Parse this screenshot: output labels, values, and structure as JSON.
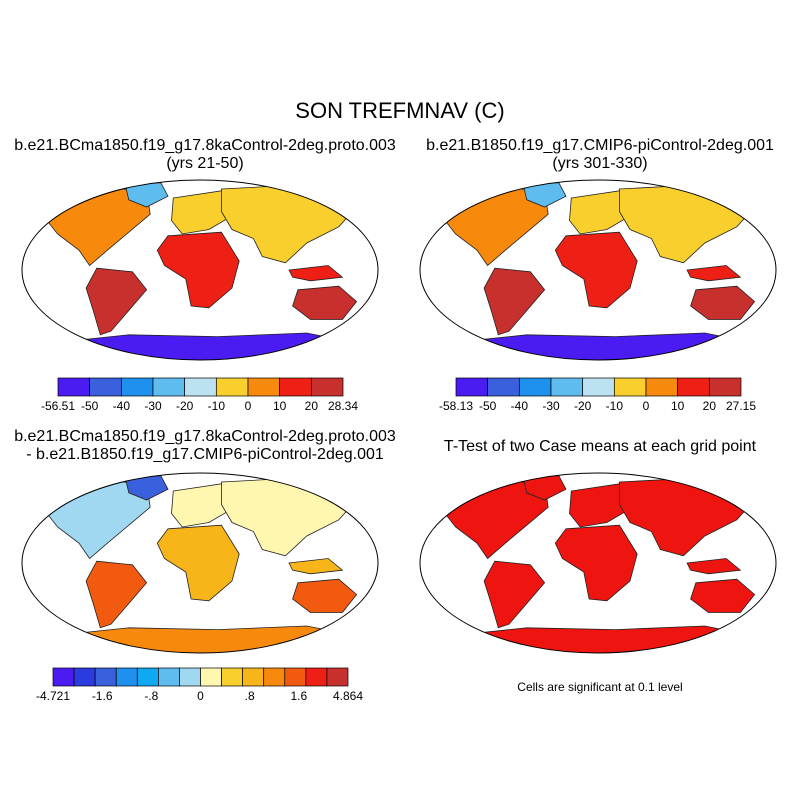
{
  "title": "SON TREFMNAV (C)",
  "chart_data": [
    {
      "type": "heatmap",
      "title_line1": "b.e21.BCma1850.f19_g17.8kaControl-2deg.proto.003",
      "title_line2": "(yrs 21-50)",
      "colorbar": {
        "colors": [
          "#4b1cf2",
          "#3b60dd",
          "#1e90ee",
          "#5ebcee",
          "#bce1f0",
          "#f8cf2d",
          "#f7890c",
          "#ee1f14",
          "#c8302d"
        ],
        "tick_labels": [
          "-56.51",
          "-50",
          "-40",
          "-30",
          "-20",
          "-10",
          "0",
          "10",
          "20",
          "28.34"
        ],
        "min": -56.51,
        "max": 28.34
      }
    },
    {
      "type": "heatmap",
      "title_line1": "b.e21.B1850.f19_g17.CMIP6-piControl-2deg.001",
      "title_line2": "(yrs 301-330)",
      "colorbar": {
        "colors": [
          "#4b1cf2",
          "#3b60dd",
          "#1e90ee",
          "#5ebcee",
          "#bce1f0",
          "#f8cf2d",
          "#f7890c",
          "#ee1f14",
          "#c8302d"
        ],
        "tick_labels": [
          "-58.13",
          "-50",
          "-40",
          "-30",
          "-20",
          "-10",
          "0",
          "10",
          "20",
          "27.15"
        ],
        "min": -58.13,
        "max": 27.15
      }
    },
    {
      "type": "heatmap",
      "title_line1": "b.e21.BCma1850.f19_g17.8kaControl-2deg.proto.003",
      "title_line2": "- b.e21.B1850.f19_g17.CMIP6-piControl-2deg.001",
      "colorbar": {
        "colors": [
          "#4b1cf2",
          "#2b3be0",
          "#3b60dd",
          "#1e90ee",
          "#10a8f0",
          "#5ebcee",
          "#9fd8f0",
          "#fff6b0",
          "#f8cf2d",
          "#f7b51a",
          "#f7890c",
          "#f25a10",
          "#ee1f14",
          "#c8302d"
        ],
        "tick_labels": [
          "-4.721",
          "-1.6",
          "-.8",
          "0",
          ".8",
          "1.6",
          "4.864"
        ],
        "tick_values": [
          -4.721,
          -1.6,
          -0.8,
          0,
          0.8,
          1.6,
          4.864
        ]
      }
    },
    {
      "type": "heatmap",
      "title_line1": "T-Test of two Case means at each grid point",
      "note": "Cells are significant at 0.1 level",
      "significant_color": "#ee1410"
    }
  ]
}
